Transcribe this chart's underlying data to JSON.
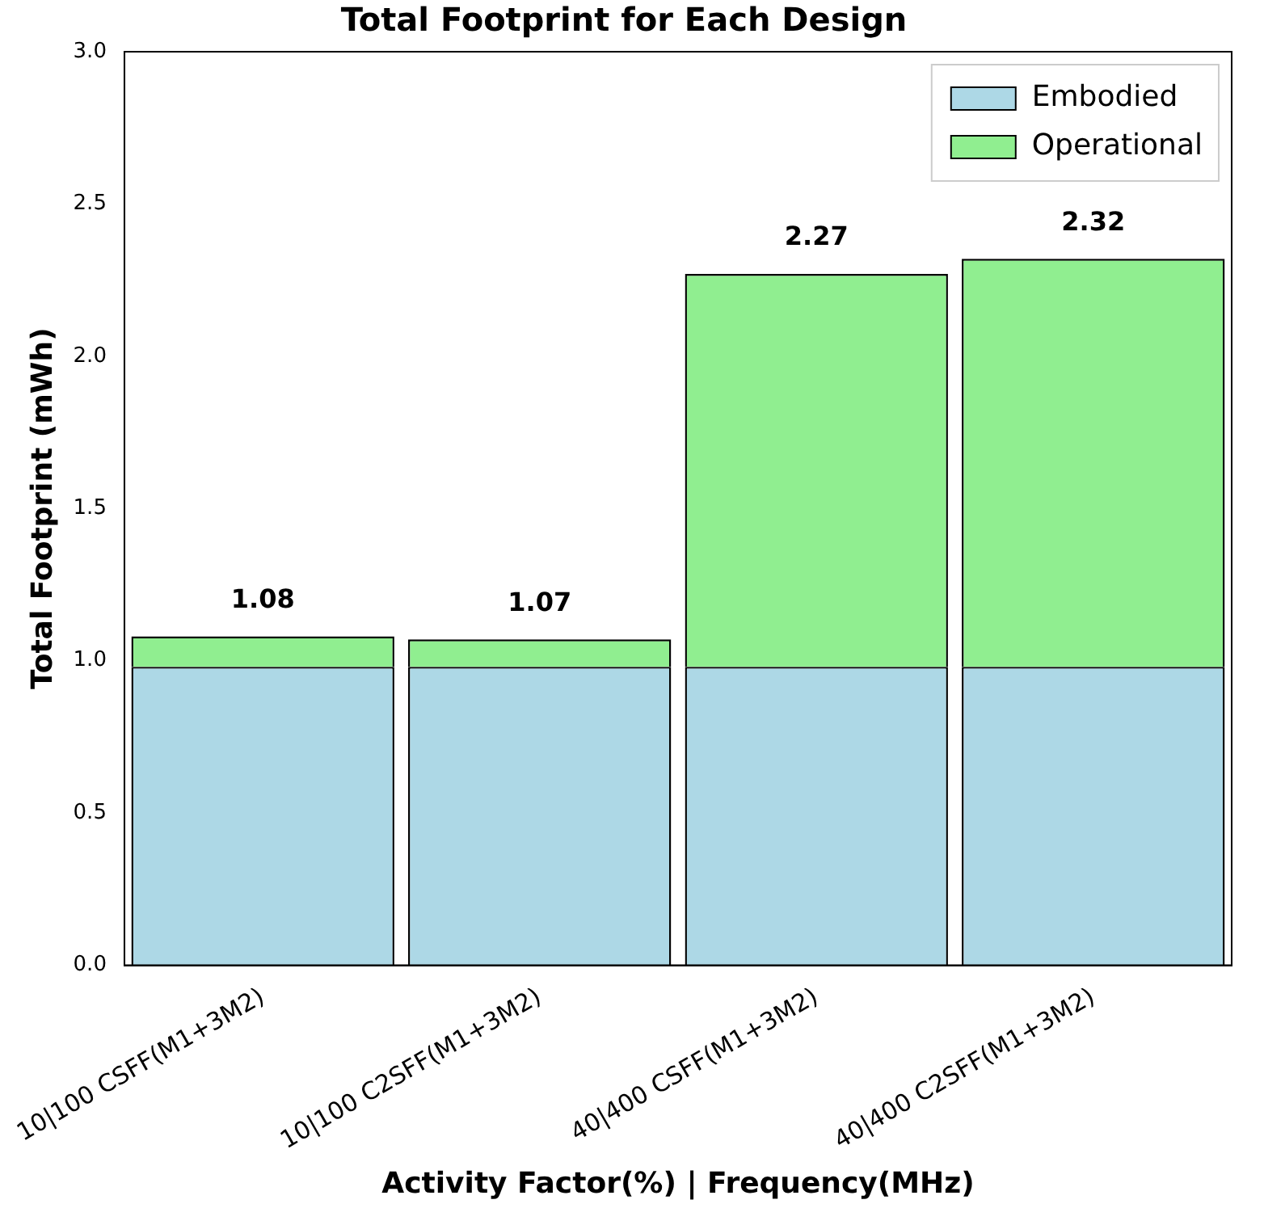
{
  "chart_data": {
    "type": "bar",
    "title": "Total Footprint for Each Design",
    "xlabel": "Activity Factor(%) | Frequency(MHz)",
    "ylabel": "Total Footprint (mWh)",
    "categories": [
      "10|100 CSFF(M1+3M2)",
      "10|100 C2SFF(M1+3M2)",
      "40|400 CSFF(M1+3M2)",
      "40|400 C2SFF(M1+3M2)"
    ],
    "stacked": true,
    "series": [
      {
        "name": "Embodied",
        "color": "#add8e6",
        "values": [
          0.98,
          0.98,
          0.98,
          0.98
        ]
      },
      {
        "name": "Operational",
        "color": "#90ee90",
        "values": [
          0.1,
          0.09,
          1.29,
          1.34
        ]
      }
    ],
    "totals": [
      "1.08",
      "1.07",
      "2.27",
      "2.32"
    ],
    "ylim": [
      0,
      3.0
    ],
    "yticks": [
      {
        "value": 0,
        "label": "0.0"
      },
      {
        "value": 0.5,
        "label": "0.5"
      },
      {
        "value": 1,
        "label": "1.0"
      },
      {
        "value": 1.5,
        "label": "1.5"
      },
      {
        "value": 2,
        "label": "2.0"
      },
      {
        "value": 2.5,
        "label": "2.5"
      },
      {
        "value": 3,
        "label": "3.0"
      }
    ],
    "grid": false,
    "legend": "top right"
  }
}
